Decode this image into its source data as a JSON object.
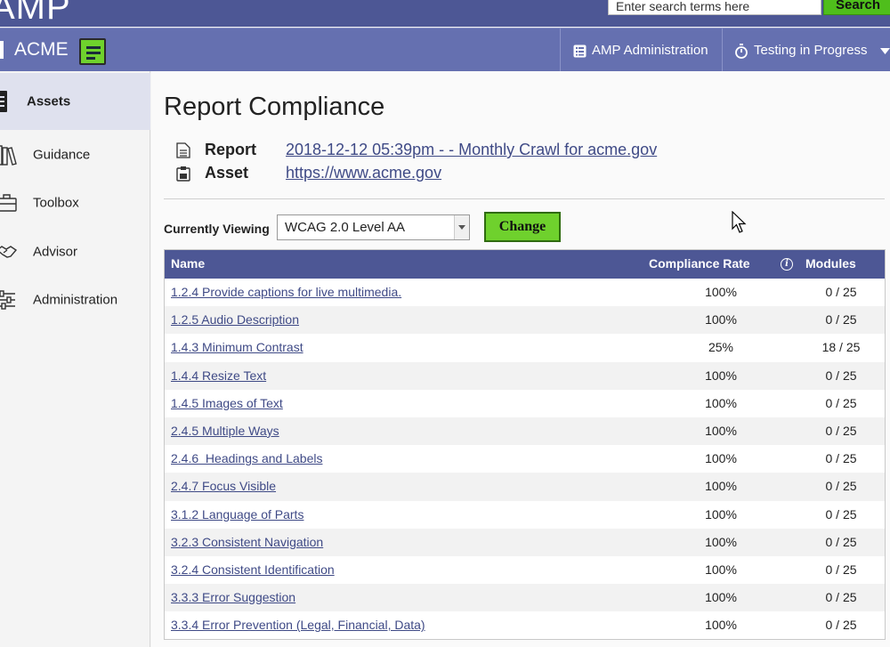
{
  "header": {
    "logo_text": "AMP",
    "search_placeholder": "Enter search terms here",
    "search_button": "Search"
  },
  "navbar": {
    "org_name": "ACME",
    "admin_label": "AMP Administration",
    "status_label": "Testing in Progress"
  },
  "sidebar": {
    "items": [
      {
        "label": "Assets",
        "icon": "assets-icon",
        "active": true
      },
      {
        "label": "Guidance",
        "icon": "books-icon"
      },
      {
        "label": "Toolbox",
        "icon": "toolbox-icon"
      },
      {
        "label": "Advisor",
        "icon": "handshake-icon"
      },
      {
        "label": "Administration",
        "icon": "sliders-icon"
      }
    ]
  },
  "main": {
    "title": "Report Compliance",
    "report_label": "Report",
    "report_value": "2018-12-12 05:39pm - - Monthly Crawl for acme.gov",
    "asset_label": "Asset",
    "asset_value": "https://www.acme.gov",
    "viewing_label": "Currently Viewing",
    "viewing_selected": "WCAG 2.0 Level AA",
    "change_button": "Change"
  },
  "table": {
    "headers": {
      "name": "Name",
      "rate": "Compliance Rate",
      "modules": "Modules"
    },
    "rows": [
      {
        "name": "1.2.4 Provide captions for live multimedia.",
        "rate": "100%",
        "modules": "0 / 25"
      },
      {
        "name": "1.2.5 Audio Description",
        "rate": "100%",
        "modules": "0 / 25"
      },
      {
        "name": "1.4.3 Minimum Contrast",
        "rate": "25%",
        "modules": "18 / 25"
      },
      {
        "name": "1.4.4 Resize Text",
        "rate": "100%",
        "modules": "0 / 25"
      },
      {
        "name": "1.4.5 Images of Text",
        "rate": "100%",
        "modules": "0 / 25"
      },
      {
        "name": "2.4.5 Multiple Ways",
        "rate": "100%",
        "modules": "0 / 25"
      },
      {
        "name": "2.4.6  Headings and Labels",
        "rate": "100%",
        "modules": "0 / 25"
      },
      {
        "name": "2.4.7 Focus Visible",
        "rate": "100%",
        "modules": "0 / 25"
      },
      {
        "name": "3.1.2 Language of Parts",
        "rate": "100%",
        "modules": "0 / 25"
      },
      {
        "name": "3.2.3 Consistent Navigation",
        "rate": "100%",
        "modules": "0 / 25"
      },
      {
        "name": "3.2.4 Consistent Identification",
        "rate": "100%",
        "modules": "0 / 25"
      },
      {
        "name": "3.3.3 Error Suggestion",
        "rate": "100%",
        "modules": "0 / 25"
      },
      {
        "name": "3.3.4 Error Prevention (Legal, Financial, Data)",
        "rate": "100%",
        "modules": "0 / 25"
      }
    ]
  },
  "colors": {
    "topbar": "#4d5795",
    "navbar": "#6570b0",
    "accent_green": "#6fd12d",
    "link": "#3f4a86"
  }
}
